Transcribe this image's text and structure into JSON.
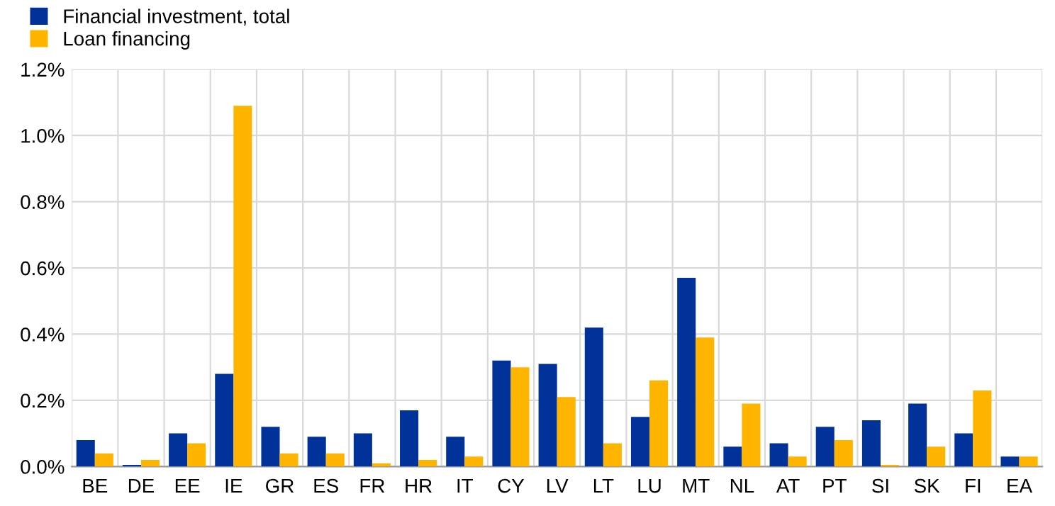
{
  "chart_data": {
    "type": "bar",
    "categories": [
      "BE",
      "DE",
      "EE",
      "IE",
      "GR",
      "ES",
      "FR",
      "HR",
      "IT",
      "CY",
      "LV",
      "LT",
      "LU",
      "MT",
      "NL",
      "AT",
      "PT",
      "SI",
      "SK",
      "FI",
      "EA"
    ],
    "series": [
      {
        "name": "Financial investment, total",
        "color": "#003299",
        "values": [
          0.08,
          0.005,
          0.1,
          0.28,
          0.12,
          0.09,
          0.1,
          0.17,
          0.09,
          0.32,
          0.31,
          0.42,
          0.15,
          0.57,
          0.06,
          0.07,
          0.12,
          0.14,
          0.19,
          0.1,
          0.03
        ]
      },
      {
        "name": "Loan financing",
        "color": "#ffb400",
        "values": [
          0.04,
          0.02,
          0.07,
          1.09,
          0.04,
          0.04,
          0.01,
          0.02,
          0.03,
          0.3,
          0.21,
          0.07,
          0.26,
          0.39,
          0.19,
          0.03,
          0.08,
          0.005,
          0.06,
          0.23,
          0.03
        ]
      }
    ],
    "ylim": [
      0,
      1.2
    ],
    "yticks": [
      {
        "value": 0,
        "label": "0.0%"
      },
      {
        "value": 0.2,
        "label": "0.2%"
      },
      {
        "value": 0.4,
        "label": "0.4%"
      },
      {
        "value": 0.6,
        "label": "0.6%"
      },
      {
        "value": 0.8,
        "label": "0.8%"
      },
      {
        "value": 1.0,
        "label": "1.0%"
      },
      {
        "value": 1.2,
        "label": "1.2%"
      }
    ],
    "grid": true,
    "legend": "top left"
  }
}
